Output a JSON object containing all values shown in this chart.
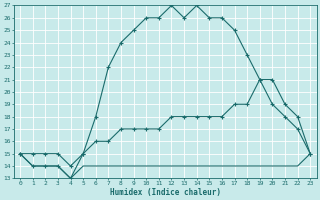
{
  "xlabel": "Humidex (Indice chaleur)",
  "bg_color": "#c8eaea",
  "grid_color": "#ffffff",
  "line_color": "#1a6b6b",
  "xlim": [
    -0.5,
    23.5
  ],
  "ylim": [
    13,
    27
  ],
  "xticks": [
    0,
    1,
    2,
    3,
    4,
    5,
    6,
    7,
    8,
    9,
    10,
    11,
    12,
    13,
    14,
    15,
    16,
    17,
    18,
    19,
    20,
    21,
    22,
    23
  ],
  "yticks": [
    13,
    14,
    15,
    16,
    17,
    18,
    19,
    20,
    21,
    22,
    23,
    24,
    25,
    26,
    27
  ],
  "line1_x": [
    0,
    1,
    2,
    3,
    4,
    5,
    6,
    7,
    8,
    9,
    10,
    11,
    12,
    13,
    14,
    15,
    16,
    17,
    18,
    19,
    20,
    21,
    22,
    23
  ],
  "line1_y": [
    15,
    14,
    14,
    14,
    13,
    15,
    18,
    22,
    24,
    25,
    26,
    26,
    27,
    26,
    27,
    26,
    26,
    25,
    23,
    21,
    19,
    18,
    17,
    15
  ],
  "line2_x": [
    0,
    1,
    2,
    3,
    4,
    5,
    6,
    7,
    8,
    9,
    10,
    11,
    12,
    13,
    14,
    15,
    16,
    17,
    18,
    19,
    20,
    21,
    22,
    23
  ],
  "line2_y": [
    15,
    15,
    15,
    15,
    14,
    15,
    16,
    16,
    17,
    17,
    17,
    17,
    18,
    18,
    18,
    18,
    18,
    19,
    19,
    21,
    21,
    19,
    18,
    15
  ],
  "line3_x": [
    0,
    1,
    2,
    3,
    4,
    5,
    6,
    7,
    8,
    9,
    10,
    11,
    12,
    13,
    14,
    15,
    16,
    17,
    18,
    19,
    20,
    21,
    22,
    23
  ],
  "line3_y": [
    15,
    14,
    14,
    14,
    13,
    14,
    14,
    14,
    14,
    14,
    14,
    14,
    14,
    14,
    14,
    14,
    14,
    14,
    14,
    14,
    14,
    14,
    14,
    15
  ]
}
